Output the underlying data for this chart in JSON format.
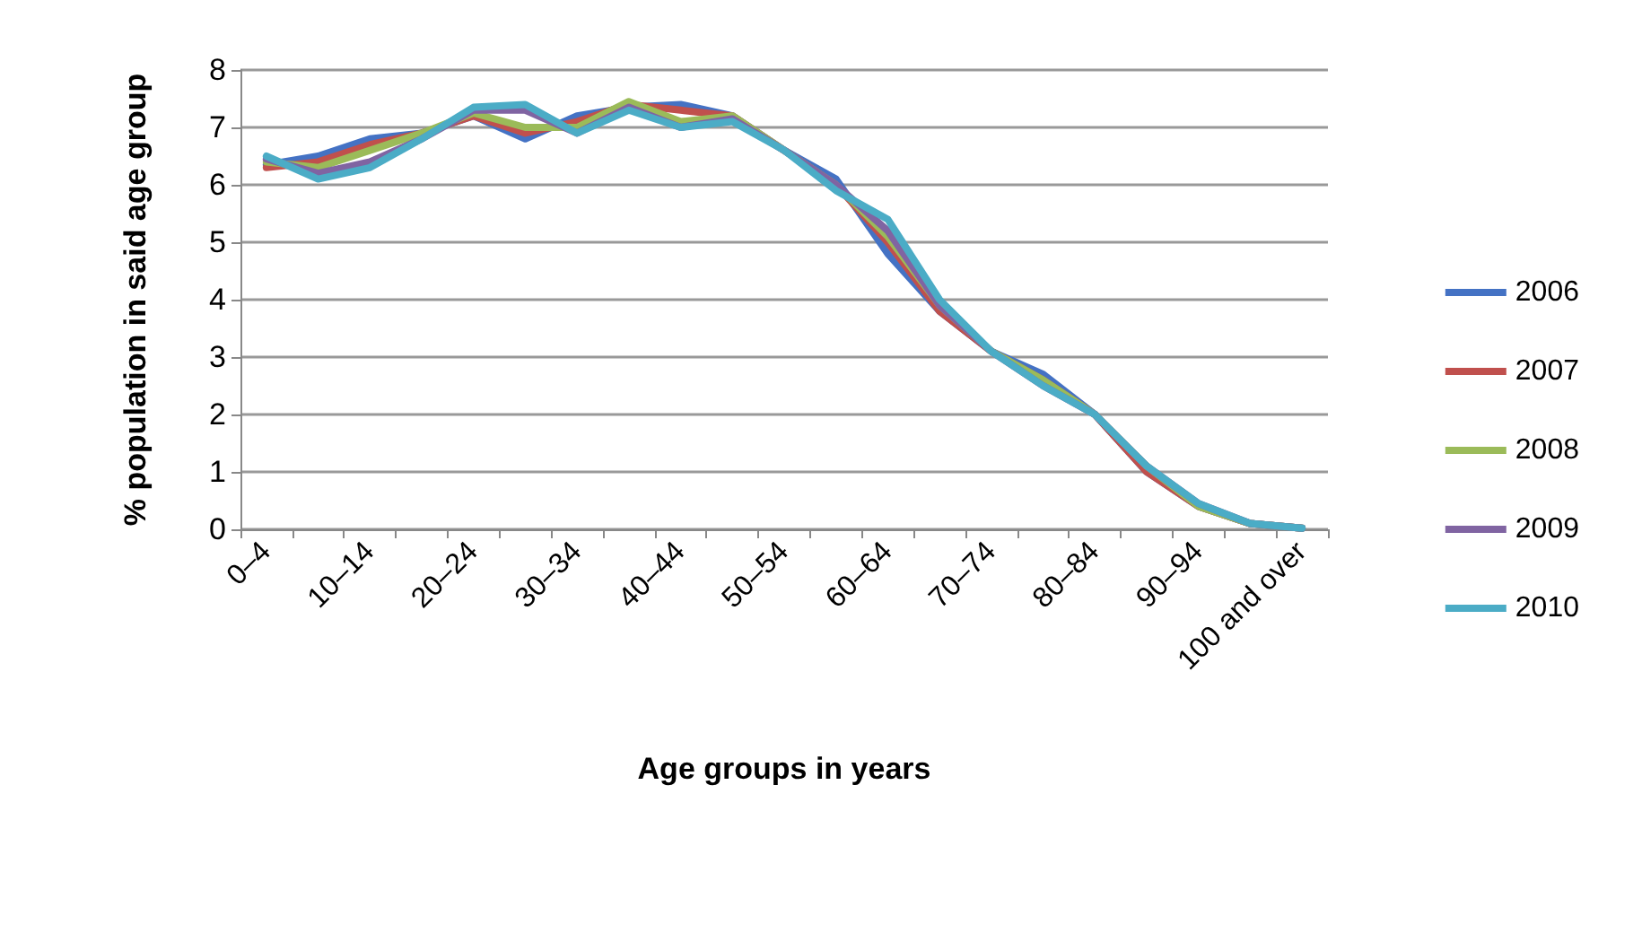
{
  "chart_data": {
    "type": "line",
    "xlabel": "Age groups in years",
    "ylabel": "% population in said age group",
    "categories": [
      "0–4",
      null,
      "10–14",
      null,
      "20–24",
      null,
      "30–34",
      null,
      "40–44",
      null,
      "50–54",
      null,
      "60–64",
      null,
      "70–74",
      null,
      "80–84",
      null,
      "90–94",
      null,
      "100 and over"
    ],
    "series": [
      {
        "name": "2006",
        "color": "#4472c4",
        "values": [
          6.35,
          6.5,
          6.8,
          6.9,
          7.2,
          6.8,
          7.2,
          7.35,
          7.4,
          7.2,
          6.6,
          6.1,
          4.8,
          3.8,
          3.1,
          2.7,
          2.0,
          1.0,
          0.4,
          0.1,
          0.02
        ]
      },
      {
        "name": "2007",
        "color": "#c0504d",
        "values": [
          6.3,
          6.4,
          6.7,
          6.9,
          7.2,
          6.9,
          7.1,
          7.4,
          7.3,
          7.2,
          6.6,
          6.0,
          5.0,
          3.8,
          3.1,
          2.6,
          2.0,
          1.0,
          0.4,
          0.1,
          0.02
        ]
      },
      {
        "name": "2008",
        "color": "#9bbb59",
        "values": [
          6.4,
          6.3,
          6.6,
          6.9,
          7.25,
          7.0,
          7.0,
          7.45,
          7.1,
          7.2,
          6.6,
          6.0,
          5.1,
          3.9,
          3.1,
          2.6,
          2.0,
          1.1,
          0.4,
          0.1,
          0.02
        ]
      },
      {
        "name": "2009",
        "color": "#8064a2",
        "values": [
          6.45,
          6.2,
          6.4,
          6.8,
          7.3,
          7.3,
          6.9,
          7.35,
          7.0,
          7.15,
          6.6,
          6.0,
          5.2,
          3.9,
          3.1,
          2.5,
          2.0,
          1.1,
          0.45,
          0.1,
          0.02
        ]
      },
      {
        "name": "2010",
        "color": "#4bacc6",
        "values": [
          6.5,
          6.1,
          6.3,
          6.8,
          7.35,
          7.4,
          6.9,
          7.3,
          7.0,
          7.1,
          6.6,
          5.9,
          5.4,
          4.0,
          3.1,
          2.5,
          2.0,
          1.1,
          0.45,
          0.1,
          0.02
        ]
      }
    ],
    "ylim": [
      0,
      8
    ],
    "yticks": [
      0,
      1,
      2,
      3,
      4,
      5,
      6,
      7,
      8
    ],
    "grid": "y",
    "legend": "right",
    "marker": "none",
    "line_style": "solid"
  }
}
